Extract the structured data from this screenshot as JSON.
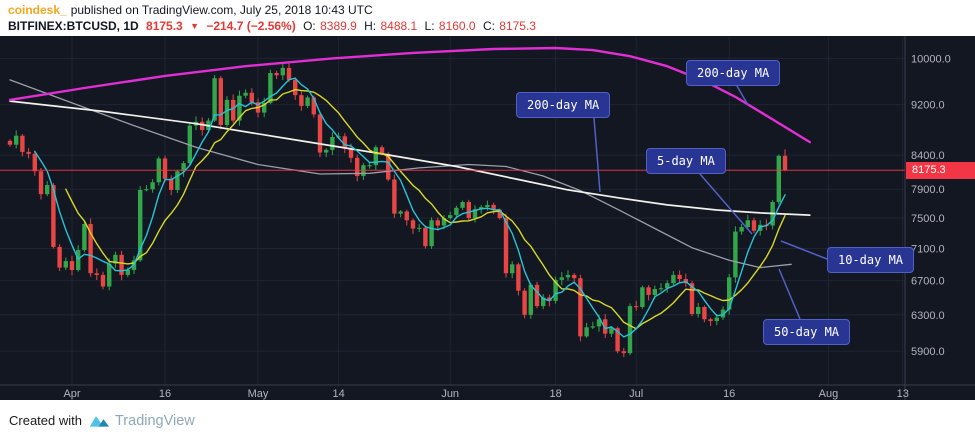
{
  "header": {
    "source": "coindesk_",
    "published": "published on TradingView.com, July 25, 2018 10:43 UTC",
    "symbol": "BITFINEX:BTCUSD, 1D",
    "price": "8175.3",
    "direction": "▼",
    "change": "−214.7 (−2.56%)",
    "o_label": "O:",
    "o_value": "8389.9",
    "h_label": "H:",
    "h_value": "8488.1",
    "l_label": "L:",
    "l_value": "8160.0",
    "c_label": "C:",
    "c_value": "8175.3"
  },
  "footer": {
    "created_with": "Created with",
    "brand": "TradingView"
  },
  "callouts": [
    {
      "id": "ma200-left",
      "label": "200-day MA"
    },
    {
      "id": "ma200-right",
      "label": "200-day MA"
    },
    {
      "id": "ma5",
      "label": "5-day MA"
    },
    {
      "id": "ma10",
      "label": "10-day MA"
    },
    {
      "id": "ma50",
      "label": "50-day MA"
    }
  ],
  "chart_data": {
    "type": "candlestick",
    "symbol": "BITFINEX:BTCUSD",
    "interval": "1D",
    "scale": "log",
    "start_date": "2018-03-22",
    "current_price": 8175.3,
    "current_price_label": "8175.3",
    "first_open": 8620,
    "closes": [
      8560,
      8700,
      8450,
      8420,
      8160,
      7830,
      7960,
      7120,
      6860,
      6940,
      6830,
      7080,
      7420,
      6790,
      6770,
      6630,
      6910,
      7020,
      6770,
      6830,
      6950,
      7890,
      7900,
      8000,
      8350,
      8050,
      7890,
      8160,
      8280,
      8860,
      8920,
      8790,
      8940,
      9650,
      8870,
      9280,
      8940,
      9350,
      9400,
      9240,
      9070,
      9230,
      9740,
      9700,
      9830,
      9620,
      9360,
      9180,
      9320,
      9040,
      8440,
      8480,
      8680,
      8690,
      8500,
      8360,
      8090,
      8250,
      8250,
      8520,
      8420,
      8040,
      7560,
      7590,
      7470,
      7360,
      7370,
      7130,
      7470,
      7400,
      7500,
      7540,
      7640,
      7720,
      7500,
      7620,
      7650,
      7680,
      7610,
      7500,
      6790,
      6900,
      6580,
      6300,
      6650,
      6400,
      6500,
      6460,
      6710,
      6740,
      6770,
      6730,
      6060,
      6160,
      6170,
      6250,
      6090,
      6150,
      5900,
      5880,
      6400,
      6390,
      6620,
      6530,
      6600,
      6610,
      6670,
      6770,
      6720,
      6670,
      6310,
      6390,
      6250,
      6230,
      6270,
      6360,
      6740,
      7320,
      7380,
      7470,
      7330,
      7410,
      7400,
      7720,
      8390,
      8175.3
    ],
    "last_candle": {
      "open": 8389.9,
      "high": 8488.1,
      "low": 8160.0,
      "close": 8175.3
    },
    "price_axis_ticks": [
      {
        "label": "10000.0",
        "value": 10000
      },
      {
        "label": "9200.0",
        "value": 9200
      },
      {
        "label": "8400.0",
        "value": 8400
      },
      {
        "label": "7900.0",
        "value": 7900
      },
      {
        "label": "7500.0",
        "value": 7500
      },
      {
        "label": "7100.0",
        "value": 7100
      },
      {
        "label": "6700.0",
        "value": 6700
      },
      {
        "label": "6300.0",
        "value": 6300
      },
      {
        "label": "5900.0",
        "value": 5900
      }
    ],
    "time_axis_ticks": [
      {
        "label": "Apr",
        "day": 10
      },
      {
        "label": "16",
        "day": 25
      },
      {
        "label": "May",
        "day": 40
      },
      {
        "label": "14",
        "day": 53
      },
      {
        "label": "Jun",
        "day": 71
      },
      {
        "label": "18",
        "day": 88
      },
      {
        "label": "Jul",
        "day": 101
      },
      {
        "label": "16",
        "day": 116
      },
      {
        "label": "Aug",
        "day": 132
      },
      {
        "label": "13",
        "day": 144
      }
    ],
    "moving_averages": [
      {
        "name": "5-day MA",
        "color": "#25c4d6",
        "window": 5,
        "computed": true
      },
      {
        "name": "10-day MA",
        "color": "#d8d826",
        "window": 10,
        "computed": true
      },
      {
        "name": "50-day MA",
        "color": "#9b9eab",
        "points": [
          [
            0,
            9620
          ],
          [
            10,
            9230
          ],
          [
            20,
            8860
          ],
          [
            30,
            8520
          ],
          [
            40,
            8260
          ],
          [
            50,
            8120
          ],
          [
            58,
            8130
          ],
          [
            66,
            8210
          ],
          [
            74,
            8260
          ],
          [
            80,
            8230
          ],
          [
            86,
            8090
          ],
          [
            92,
            7880
          ],
          [
            98,
            7620
          ],
          [
            104,
            7360
          ],
          [
            110,
            7110
          ],
          [
            116,
            6950
          ],
          [
            121,
            6860
          ],
          [
            126,
            6900
          ]
        ]
      },
      {
        "name": "200-day MA (white)",
        "color": "#f2f2ea",
        "points": [
          [
            0,
            9260
          ],
          [
            15,
            9090
          ],
          [
            30,
            8890
          ],
          [
            45,
            8650
          ],
          [
            60,
            8420
          ],
          [
            72,
            8230
          ],
          [
            82,
            8040
          ],
          [
            90,
            7890
          ],
          [
            98,
            7780
          ],
          [
            106,
            7680
          ],
          [
            114,
            7610
          ],
          [
            121,
            7570
          ],
          [
            129,
            7540
          ]
        ]
      },
      {
        "name": "200-day MA (magenta)",
        "color": "#e12fd4",
        "points": [
          [
            0,
            9280
          ],
          [
            12,
            9480
          ],
          [
            25,
            9690
          ],
          [
            38,
            9860
          ],
          [
            52,
            10000
          ],
          [
            65,
            10100
          ],
          [
            78,
            10170
          ],
          [
            88,
            10190
          ],
          [
            94,
            10150
          ],
          [
            100,
            10040
          ],
          [
            106,
            9860
          ],
          [
            112,
            9600
          ],
          [
            117,
            9330
          ],
          [
            122,
            9020
          ],
          [
            129,
            8600
          ]
        ]
      }
    ]
  },
  "colors": {
    "background": "#131722",
    "grid": "#1e2433",
    "axis_text": "#b2b5be",
    "separator": "#3a3e4b",
    "up": "#33a64c",
    "down": "#e84545",
    "price_line": "#f23645",
    "badge": "#f23645",
    "value_red": "#e53935",
    "accent_orange": "#f7a521",
    "callout_bg": "#283593",
    "callout_border": "#5161c6",
    "callout_text": "#ffffff",
    "brand_text": "#8ea8ba",
    "brand_blue": "#4fc0e8",
    "brand_blue_dark": "#2286b5",
    "header_text": "#131722"
  }
}
